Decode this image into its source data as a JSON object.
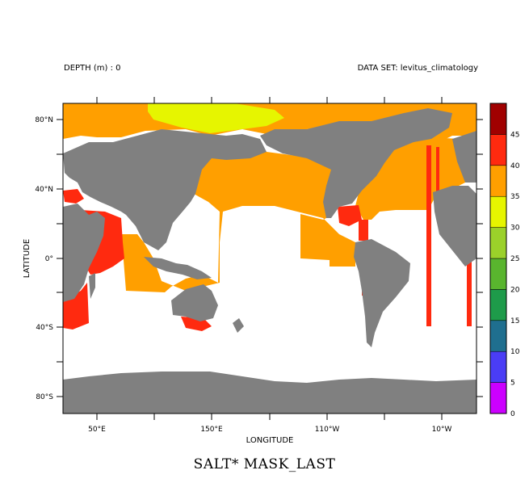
{
  "header": {
    "depth": "DEPTH (m) : 0",
    "dataset": "DATA SET: levitus_climatology"
  },
  "footer": {
    "title": "SALT* MASK_LAST"
  },
  "colors": {
    "land": "#808080",
    "masked": "#ffffff",
    "orange": "#ff9f00",
    "red": "#ff2a0f",
    "yellow": "#e6f500"
  },
  "chart_data": {
    "type": "heatmap",
    "xlabel": "LONGITUDE",
    "ylabel": "LATITUDE",
    "x_ticks": [
      "50°E",
      "150°E",
      "110°W",
      "10°W"
    ],
    "y_ticks": [
      "80°N",
      "40°N",
      "0°",
      "40°S",
      "80°S"
    ],
    "colorbar": {
      "levels": [
        0,
        5,
        10,
        15,
        20,
        25,
        30,
        35,
        40,
        45
      ],
      "labels": [
        "0",
        "5",
        "10",
        "15",
        "20",
        "25",
        "30",
        "35",
        "40",
        "45"
      ],
      "colors": [
        "#cc00ff",
        "#4a3df5",
        "#1f6f8f",
        "#1e9b4a",
        "#59b52e",
        "#9bd12a",
        "#e6f500",
        "#ff9f00",
        "#ff2a0f",
        "#a00000"
      ]
    }
  }
}
